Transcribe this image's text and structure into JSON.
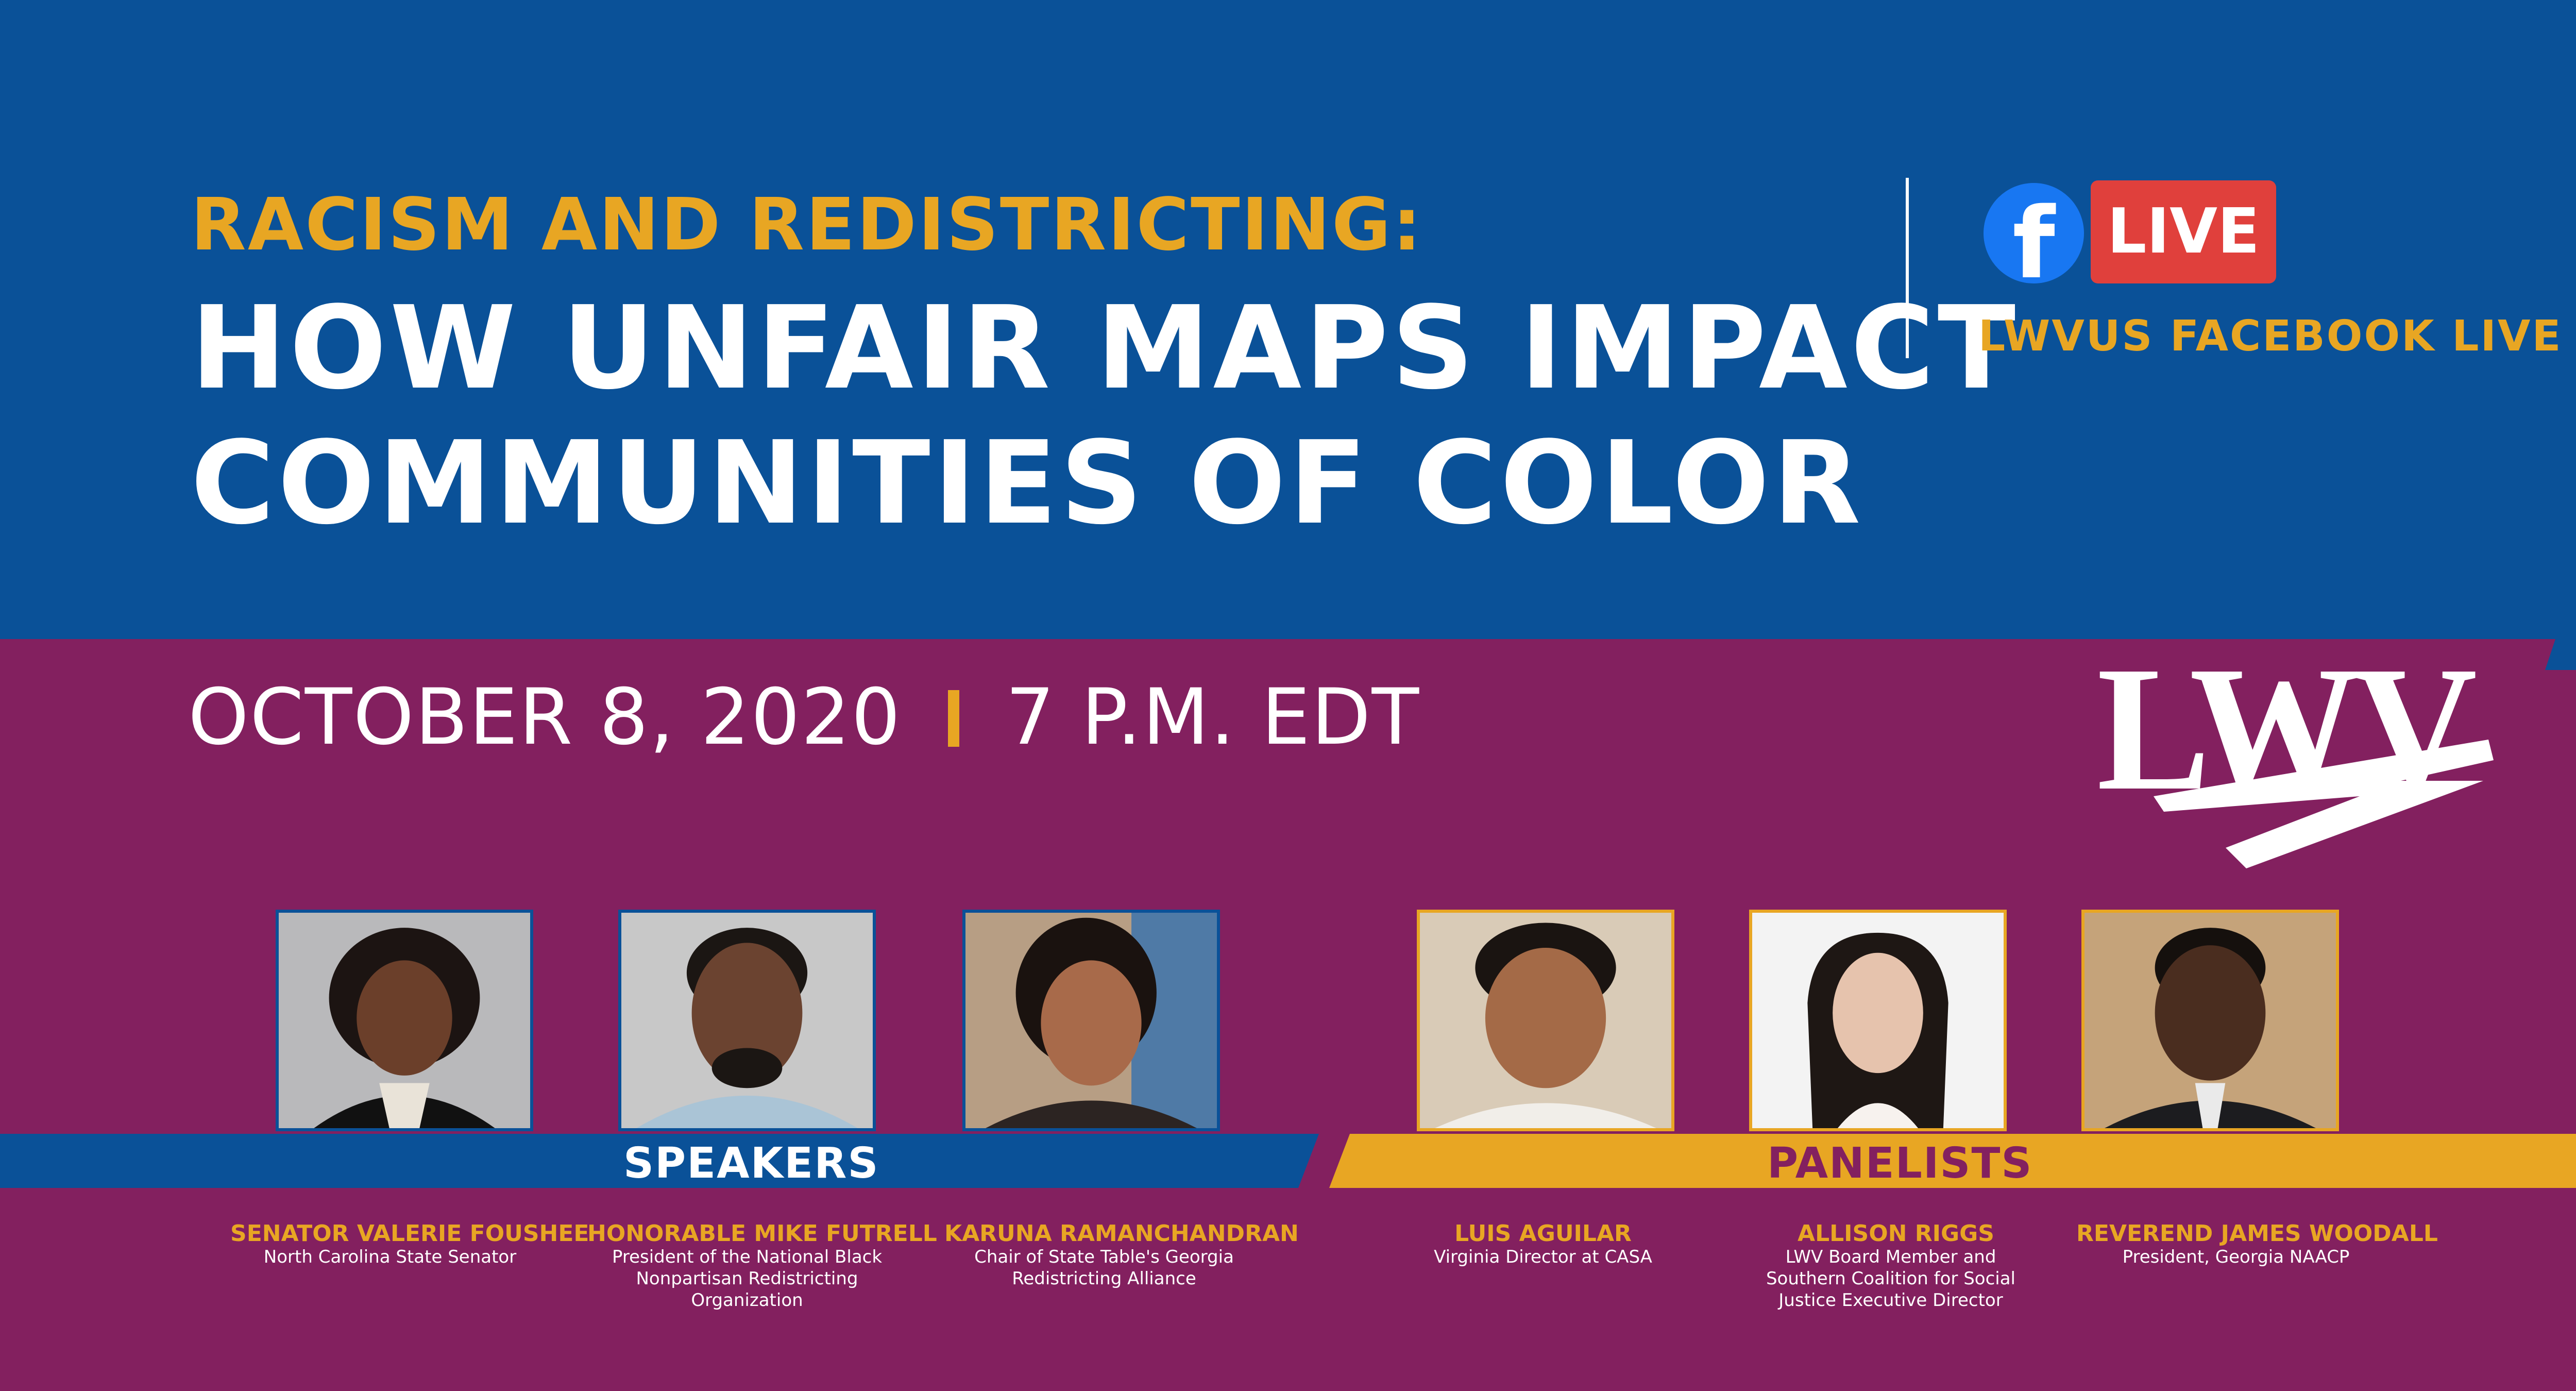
{
  "header": {
    "kicker": "RACISM AND REDISTRICTING:",
    "headline_line1": "HOW UNFAIR MAPS IMPACT",
    "headline_line2": "COMMUNITIES OF COLOR"
  },
  "facebook": {
    "icon_letter": "f",
    "badge": "LIVE",
    "caption": "LWVUS FACEBOOK LIVE"
  },
  "event": {
    "date": "OCTOBER 8, 2020",
    "time": "7 P.M. EDT"
  },
  "logo": {
    "text": "LWV"
  },
  "speakers": {
    "label": "SPEAKERS",
    "people": [
      {
        "name": "SENATOR VALERIE FOUSHEE",
        "role": "North Carolina State Senator"
      },
      {
        "name": "HONORABLE MIKE FUTRELL",
        "role": "President of the National Black Nonpartisan Redistricting Organization"
      },
      {
        "name": "KARUNA RAMANCHANDRAN",
        "role": "Chair of State Table's Georgia Redistricting Alliance"
      }
    ]
  },
  "panelists": {
    "label": "PANELISTS",
    "people": [
      {
        "name": "LUIS AGUILAR",
        "role": "Virginia Director at CASA"
      },
      {
        "name": "ALLISON RIGGS",
        "role": "LWV Board Member and Southern Coalition for Social Justice Executive Director"
      },
      {
        "name": "REVEREND JAMES WOODALL",
        "role": "President, Georgia NAACP"
      }
    ]
  },
  "colors": {
    "blue": "#0a5198",
    "plum": "#83205f",
    "gold": "#e8a623",
    "white": "#ffffff",
    "facebook_blue": "#1877f2",
    "live_red": "#e0403c"
  }
}
